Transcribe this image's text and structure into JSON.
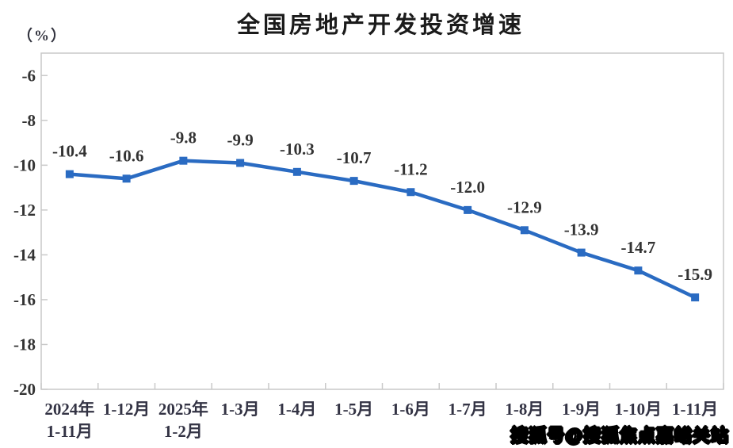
{
  "page": {
    "title": "全国房地产开发投资增速",
    "unit_label": "（%）",
    "watermark": "搜狐号@搜狐焦点嘉峪关站"
  },
  "chart_data": {
    "type": "line",
    "title": "全国房地产开发投资增速",
    "ylabel": "（%）",
    "categories": [
      [
        "2024年",
        "1-11月"
      ],
      [
        "1-12月"
      ],
      [
        "2025年",
        "1-2月"
      ],
      [
        "1-3月"
      ],
      [
        "1-4月"
      ],
      [
        "1-5月"
      ],
      [
        "1-6月"
      ],
      [
        "1-7月"
      ],
      [
        "1-8月"
      ],
      [
        "1-9月"
      ],
      [
        "1-10月"
      ],
      [
        "1-11月"
      ]
    ],
    "values": [
      -10.4,
      -10.6,
      -9.8,
      -9.9,
      -10.3,
      -10.7,
      -11.2,
      -12.0,
      -12.9,
      -13.9,
      -14.7,
      -15.9
    ],
    "data_label_decimals": 1,
    "ylim": [
      -20,
      -5
    ],
    "yticks": [
      -6,
      -8,
      -10,
      -12,
      -14,
      -16,
      -18,
      -20
    ],
    "grid": false,
    "legend": false,
    "marker": "square",
    "line_color": "#2A6BC2",
    "label_color": "#333333",
    "axis_color": "#c9c9c9"
  }
}
